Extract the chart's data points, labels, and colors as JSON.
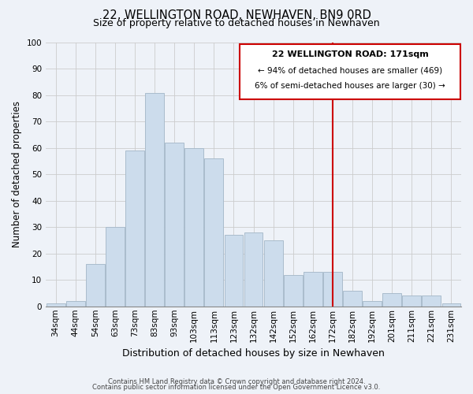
{
  "title": "22, WELLINGTON ROAD, NEWHAVEN, BN9 0RD",
  "subtitle": "Size of property relative to detached houses in Newhaven",
  "xlabel": "Distribution of detached houses by size in Newhaven",
  "ylabel": "Number of detached properties",
  "categories": [
    "34sqm",
    "44sqm",
    "54sqm",
    "63sqm",
    "73sqm",
    "83sqm",
    "93sqm",
    "103sqm",
    "113sqm",
    "123sqm",
    "132sqm",
    "142sqm",
    "152sqm",
    "162sqm",
    "172sqm",
    "182sqm",
    "192sqm",
    "201sqm",
    "211sqm",
    "221sqm",
    "231sqm"
  ],
  "values": [
    1,
    2,
    16,
    30,
    59,
    81,
    62,
    60,
    56,
    27,
    28,
    25,
    12,
    13,
    13,
    6,
    2,
    5,
    4,
    4,
    1
  ],
  "bar_color": "#ccdcec",
  "bar_edge_color": "#aabccc",
  "grid_color": "#cccccc",
  "reference_line_index": 14,
  "reference_line_color": "#cc0000",
  "annotation_title": "22 WELLINGTON ROAD: 171sqm",
  "annotation_line1": "← 94% of detached houses are smaller (469)",
  "annotation_line2": "6% of semi-detached houses are larger (30) →",
  "annotation_box_color": "#cc0000",
  "ylim": [
    0,
    100
  ],
  "yticks": [
    0,
    10,
    20,
    30,
    40,
    50,
    60,
    70,
    80,
    90,
    100
  ],
  "footnote1": "Contains HM Land Registry data © Crown copyright and database right 2024.",
  "footnote2": "Contains public sector information licensed under the Open Government Licence v3.0.",
  "title_fontsize": 10.5,
  "subtitle_fontsize": 9,
  "xlabel_fontsize": 9,
  "ylabel_fontsize": 8.5,
  "tick_fontsize": 7.5,
  "annotation_title_fontsize": 8,
  "annotation_body_fontsize": 7.5,
  "footnote_fontsize": 6,
  "background_color": "#eef2f8"
}
